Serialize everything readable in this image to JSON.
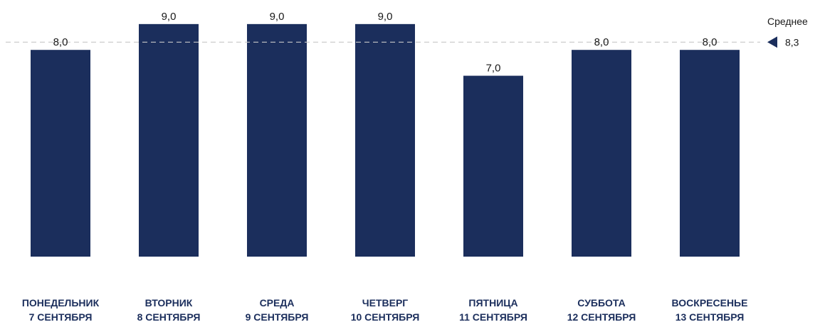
{
  "chart_data": {
    "type": "bar",
    "categories": [
      [
        "ПОНЕДЕЛЬНИК",
        "7 СЕНТЯБРЯ"
      ],
      [
        "ВТОРНИК",
        "8 СЕНТЯБРЯ"
      ],
      [
        "СРЕДА",
        "9 СЕНТЯБРЯ"
      ],
      [
        "ЧЕТВЕРГ",
        "10 СЕНТЯБРЯ"
      ],
      [
        "ПЯТНИЦА",
        "11 СЕНТЯБРЯ"
      ],
      [
        "СУББОТА",
        "12 СЕНТЯБРЯ"
      ],
      [
        "ВОСКРЕСЕНЬЕ",
        "13 СЕНТЯБРЯ"
      ]
    ],
    "values": [
      8.0,
      9.0,
      9.0,
      9.0,
      7.0,
      8.0,
      8.0
    ],
    "value_labels": [
      "8,0",
      "9,0",
      "9,0",
      "9,0",
      "7,0",
      "8,0",
      "8,0"
    ],
    "bar_color": "#1b2e5c",
    "reference_line": {
      "title": "Среднее",
      "value": 8.3,
      "label": "8,3",
      "style": "dashed",
      "color": "#c8c8c8"
    },
    "title": "",
    "xlabel": "",
    "ylabel": "",
    "ylim": [
      0,
      9
    ],
    "grid": false,
    "legend": "none"
  }
}
